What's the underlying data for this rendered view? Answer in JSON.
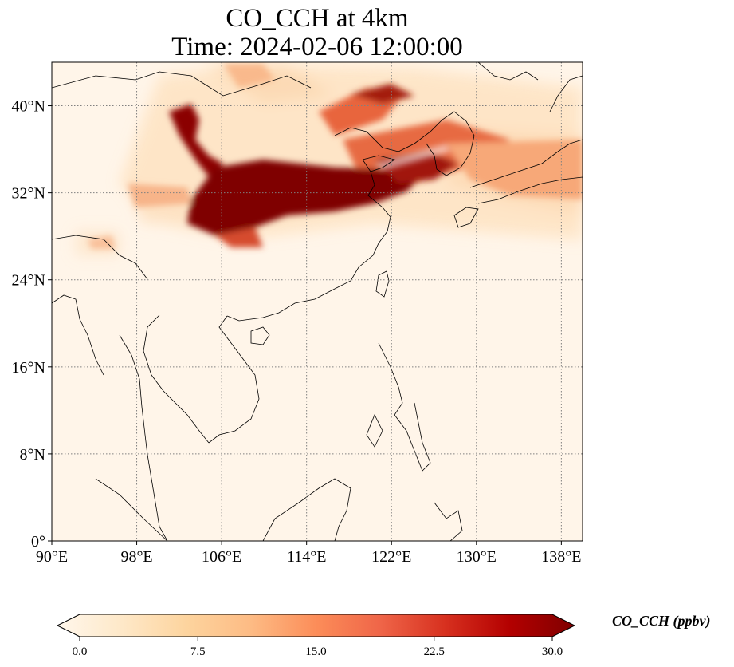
{
  "title": {
    "line1": "CO_CCH at 4km",
    "line2": "Time: 2024-02-06 12:00:00"
  },
  "map": {
    "lon_range": [
      90,
      140
    ],
    "lat_range": [
      0,
      44
    ],
    "lon_ticks": [
      {
        "value": 90,
        "label": "90°E"
      },
      {
        "value": 98,
        "label": "98°E"
      },
      {
        "value": 106,
        "label": "106°E"
      },
      {
        "value": 114,
        "label": "114°E"
      },
      {
        "value": 122,
        "label": "122°E"
      },
      {
        "value": 130,
        "label": "130°E"
      },
      {
        "value": 138,
        "label": "138°E"
      }
    ],
    "lat_ticks": [
      {
        "value": 0,
        "label": "0°"
      },
      {
        "value": 8,
        "label": "8°N"
      },
      {
        "value": 16,
        "label": "16°N"
      },
      {
        "value": 24,
        "label": "24°N"
      },
      {
        "value": 32,
        "label": "32°N"
      },
      {
        "value": 40,
        "label": "40°N"
      }
    ],
    "background_color": "#fff5e9",
    "gridlines": true
  },
  "colorbar": {
    "label": "CO_CCH (ppbv)",
    "min": 0,
    "max": 30,
    "ticks": [
      "0.0",
      "7.5",
      "15.0",
      "22.5",
      "30.0"
    ],
    "extend": "both",
    "colormap": "OrRd",
    "stops": [
      "#fff7ec",
      "#fee8c8",
      "#fdd49e",
      "#fdbb84",
      "#fc8d59",
      "#ef6548",
      "#d7301f",
      "#b30000",
      "#7f0000"
    ]
  }
}
